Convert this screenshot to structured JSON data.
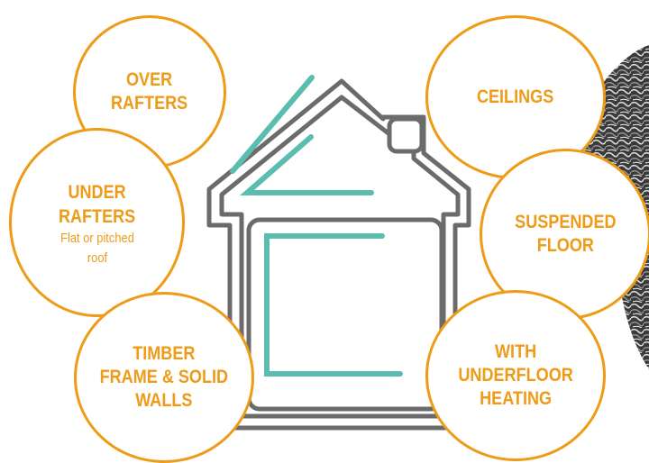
{
  "bubbles": {
    "over_rafters": "OVER\nRAFTERS",
    "under_rafters": "UNDER\nRAFTERS",
    "under_rafters_note": "Flat or pitched roof",
    "timber_frame": "TIMBER\nFRAME & SOLID\nWALLS",
    "ceilings": "CEILINGS",
    "suspended_floor": "SUSPENDED\nFLOOR",
    "underfloor_heating": "WITH\nUNDERFLOOR\nHEATING"
  },
  "colors": {
    "accent": "#ee9b17",
    "house_outline": "#6b6b6b",
    "insulation": "#5bbcb0"
  },
  "icons": [
    "house-icon",
    "stone-texture"
  ]
}
